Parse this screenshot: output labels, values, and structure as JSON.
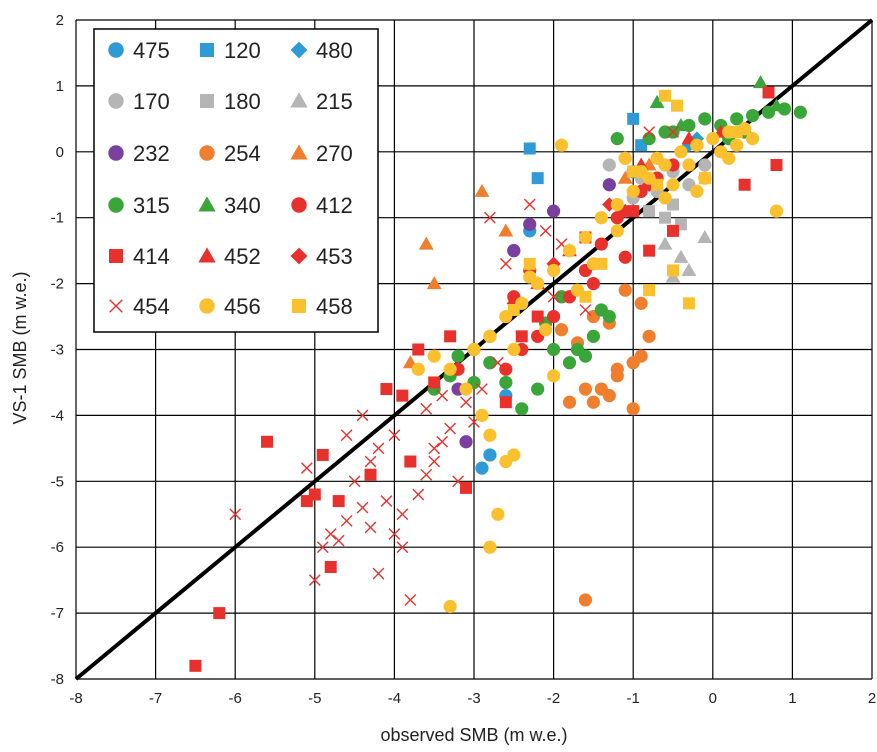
{
  "chart_data": {
    "type": "scatter",
    "xlabel": "observed SMB (m w.e.)",
    "ylabel": "VS-1 SMB  (m w.e.)",
    "xlim": [
      -8,
      2
    ],
    "ylim": [
      -8,
      2
    ],
    "x_ticks": [
      "-8",
      "-7",
      "-6",
      "-5",
      "-4",
      "-3",
      "-2",
      "-1",
      "0",
      "1",
      "2"
    ],
    "y_ticks": [
      "2",
      "1",
      "0",
      "-1",
      "-2",
      "-3",
      "-4",
      "-5",
      "-6",
      "-7",
      "-8"
    ],
    "grid": true,
    "legend_position": "top-left",
    "reference_line": {
      "x": [
        -8,
        2
      ],
      "y": [
        -8,
        2
      ],
      "color": "#000000"
    },
    "series": [
      {
        "name": "475",
        "marker": "circle",
        "color": "#2e9ad6",
        "points": [
          [
            -2.9,
            -4.8
          ],
          [
            -2.8,
            -4.6
          ],
          [
            -2.5,
            -1.5
          ],
          [
            -2.6,
            -3.7
          ],
          [
            -2.3,
            -1.2
          ]
        ]
      },
      {
        "name": "120",
        "marker": "square",
        "color": "#2e9ad6",
        "points": [
          [
            -2.3,
            0.05
          ],
          [
            -2.2,
            -0.4
          ],
          [
            -1.0,
            0.5
          ],
          [
            -0.9,
            0.1
          ]
        ]
      },
      {
        "name": "480",
        "marker": "diamond",
        "color": "#2e9ad6",
        "points": [
          [
            -0.3,
            0.1
          ],
          [
            -0.2,
            0.2
          ]
        ]
      },
      {
        "name": "170",
        "marker": "circle",
        "color": "#b5b5b5",
        "points": [
          [
            -1.3,
            -0.2
          ],
          [
            -1.1,
            -0.1
          ],
          [
            -0.9,
            -0.4
          ],
          [
            -0.7,
            -0.6
          ],
          [
            -0.5,
            -0.3
          ],
          [
            -0.3,
            -0.5
          ],
          [
            -0.1,
            -0.2
          ],
          [
            -1.0,
            -0.7
          ]
        ]
      },
      {
        "name": "180",
        "marker": "square",
        "color": "#b5b5b5",
        "points": [
          [
            -0.8,
            -0.9
          ],
          [
            -0.6,
            -1.0
          ],
          [
            -0.5,
            -0.8
          ],
          [
            -0.4,
            -1.1
          ]
        ]
      },
      {
        "name": "215",
        "marker": "triangle",
        "color": "#b5b5b5",
        "points": [
          [
            -0.6,
            -1.4
          ],
          [
            -0.4,
            -1.6
          ],
          [
            -0.3,
            -1.8
          ],
          [
            -0.1,
            -1.3
          ],
          [
            -0.5,
            -1.9
          ]
        ]
      },
      {
        "name": "232",
        "marker": "circle",
        "color": "#7b3fa0",
        "points": [
          [
            -2.5,
            -1.5
          ],
          [
            -2.3,
            -1.1
          ],
          [
            -2.0,
            -0.9
          ],
          [
            -1.3,
            -0.5
          ],
          [
            -3.2,
            -3.6
          ],
          [
            -3.1,
            -4.4
          ],
          [
            -2.8,
            -3.2
          ]
        ]
      },
      {
        "name": "254",
        "marker": "circle",
        "color": "#ef7f2e",
        "points": [
          [
            -1.8,
            -3.8
          ],
          [
            -1.6,
            -3.6
          ],
          [
            -1.5,
            -3.8
          ],
          [
            -1.4,
            -3.6
          ],
          [
            -1.3,
            -3.7
          ],
          [
            -1.2,
            -3.4
          ],
          [
            -1.0,
            -3.2
          ],
          [
            -0.9,
            -3.1
          ],
          [
            -0.8,
            -2.8
          ],
          [
            -1.0,
            -3.9
          ],
          [
            -1.2,
            -3.3
          ],
          [
            -1.5,
            -2.5
          ],
          [
            -1.1,
            -2.1
          ],
          [
            -1.3,
            -2.6
          ],
          [
            -0.9,
            -2.3
          ],
          [
            -1.6,
            -6.8
          ],
          [
            -1.7,
            -2.9
          ],
          [
            -1.9,
            -2.7
          ]
        ]
      },
      {
        "name": "270",
        "marker": "triangle",
        "color": "#ef7f2e",
        "points": [
          [
            -2.9,
            -0.6
          ],
          [
            -3.6,
            -1.4
          ],
          [
            -3.5,
            -2.0
          ],
          [
            -3.8,
            -3.2
          ],
          [
            -2.6,
            -1.2
          ],
          [
            -1.1,
            -0.4
          ],
          [
            -0.8,
            -0.2
          ]
        ]
      },
      {
        "name": "315",
        "marker": "circle",
        "color": "#3aa63a",
        "points": [
          [
            -0.3,
            0.4
          ],
          [
            -0.1,
            0.5
          ],
          [
            0.1,
            0.4
          ],
          [
            0.3,
            0.5
          ],
          [
            0.5,
            0.55
          ],
          [
            0.7,
            0.6
          ],
          [
            0.9,
            0.65
          ],
          [
            1.1,
            0.6
          ],
          [
            0.2,
            0.2
          ],
          [
            -0.5,
            0.3
          ],
          [
            -0.8,
            0.2
          ],
          [
            -0.2,
            0.1
          ],
          [
            0.4,
            0.3
          ],
          [
            -1.0,
            -0.3
          ],
          [
            -1.5,
            -2.8
          ],
          [
            -1.7,
            -3.0
          ],
          [
            -1.3,
            -2.5
          ],
          [
            -1.6,
            -3.1
          ],
          [
            -1.8,
            -3.2
          ],
          [
            -2.0,
            -3.0
          ],
          [
            -2.2,
            -3.6
          ],
          [
            -2.4,
            -3.9
          ],
          [
            -2.6,
            -3.5
          ],
          [
            -2.8,
            -3.2
          ],
          [
            -3.0,
            -3.5
          ],
          [
            -3.2,
            -3.1
          ],
          [
            -3.3,
            -3.4
          ],
          [
            -3.5,
            -3.6
          ],
          [
            -1.4,
            -2.4
          ],
          [
            -1.2,
            0.2
          ],
          [
            -0.6,
            0.3
          ],
          [
            -2.1,
            -2.6
          ],
          [
            -1.9,
            -2.2
          ]
        ]
      },
      {
        "name": "340",
        "marker": "triangle",
        "color": "#3aa63a",
        "points": [
          [
            0.6,
            1.05
          ],
          [
            -0.7,
            0.75
          ],
          [
            -0.4,
            0.4
          ],
          [
            0.8,
            0.7
          ]
        ]
      },
      {
        "name": "412",
        "marker": "circle",
        "color": "#e8312d",
        "points": [
          [
            -1.2,
            -1.0
          ],
          [
            -1.4,
            -1.4
          ],
          [
            -1.6,
            -1.8
          ],
          [
            -1.8,
            -2.2
          ],
          [
            -2.0,
            -2.5
          ],
          [
            -2.2,
            -2.8
          ],
          [
            -2.4,
            -3.0
          ],
          [
            -2.6,
            -3.3
          ],
          [
            -2.8,
            -2.8
          ],
          [
            -3.0,
            -3.0
          ],
          [
            -3.2,
            -3.3
          ],
          [
            -0.9,
            -0.6
          ],
          [
            -0.7,
            -0.4
          ],
          [
            -0.5,
            -0.2
          ],
          [
            -1.5,
            -2.0
          ],
          [
            -2.3,
            -1.8
          ],
          [
            -2.5,
            -2.2
          ],
          [
            -1.1,
            -1.6
          ]
        ]
      },
      {
        "name": "414",
        "marker": "square",
        "color": "#e8312d",
        "points": [
          [
            -6.5,
            -7.8
          ],
          [
            -6.2,
            -7.0
          ],
          [
            -5.6,
            -4.4
          ],
          [
            -5.1,
            -5.3
          ],
          [
            -5.0,
            -5.2
          ],
          [
            -4.9,
            -4.6
          ],
          [
            -4.8,
            -6.3
          ],
          [
            -4.7,
            -5.3
          ],
          [
            -4.3,
            -4.9
          ],
          [
            -4.1,
            -3.6
          ],
          [
            -3.9,
            -3.7
          ],
          [
            -3.8,
            -4.7
          ],
          [
            -3.7,
            -3.0
          ],
          [
            -3.5,
            -3.5
          ],
          [
            -3.3,
            -2.8
          ],
          [
            -3.1,
            -5.1
          ],
          [
            -2.6,
            -3.8
          ],
          [
            -2.4,
            -2.8
          ],
          [
            -2.2,
            -2.5
          ],
          [
            -1.0,
            -0.9
          ],
          [
            -0.5,
            -1.2
          ],
          [
            0.4,
            -0.5
          ],
          [
            0.8,
            -0.2
          ],
          [
            0.7,
            0.9
          ],
          [
            -1.6,
            -1.3
          ],
          [
            -0.8,
            -1.5
          ]
        ]
      },
      {
        "name": "452",
        "marker": "triangle",
        "color": "#e8312d",
        "points": [
          [
            -0.3,
            0.2
          ],
          [
            0.1,
            0.3
          ],
          [
            -0.9,
            -0.2
          ],
          [
            -2.2,
            -2.0
          ],
          [
            -1.8,
            -1.5
          ]
        ]
      },
      {
        "name": "453",
        "marker": "diamond",
        "color": "#e8312d",
        "points": [
          [
            -1.3,
            -0.8
          ],
          [
            -1.1,
            -0.9
          ],
          [
            -0.8,
            -0.5
          ],
          [
            -2.0,
            -1.7
          ],
          [
            -2.5,
            -2.3
          ]
        ]
      },
      {
        "name": "454",
        "marker": "x",
        "color": "#e8312d",
        "points": [
          [
            -6.0,
            -5.5
          ],
          [
            -5.1,
            -4.8
          ],
          [
            -5.0,
            -6.5
          ],
          [
            -4.9,
            -6.0
          ],
          [
            -4.8,
            -5.8
          ],
          [
            -4.7,
            -5.9
          ],
          [
            -4.6,
            -5.6
          ],
          [
            -4.5,
            -5.0
          ],
          [
            -4.4,
            -5.4
          ],
          [
            -4.3,
            -5.7
          ],
          [
            -4.2,
            -6.4
          ],
          [
            -4.1,
            -5.3
          ],
          [
            -4.0,
            -5.8
          ],
          [
            -3.9,
            -5.5
          ],
          [
            -3.8,
            -6.8
          ],
          [
            -3.7,
            -5.2
          ],
          [
            -3.6,
            -4.9
          ],
          [
            -3.5,
            -4.7
          ],
          [
            -3.4,
            -4.4
          ],
          [
            -3.3,
            -4.2
          ],
          [
            -3.2,
            -5.0
          ],
          [
            -3.1,
            -3.8
          ],
          [
            -3.0,
            -4.1
          ],
          [
            -4.4,
            -4.0
          ],
          [
            -4.2,
            -4.5
          ],
          [
            -4.0,
            -4.3
          ],
          [
            -3.9,
            -6.0
          ],
          [
            -3.6,
            -3.9
          ],
          [
            -3.4,
            -3.7
          ],
          [
            -2.9,
            -3.6
          ],
          [
            -2.7,
            -3.2
          ],
          [
            -2.6,
            -1.7
          ],
          [
            -2.8,
            -1.0
          ],
          [
            -2.3,
            -0.8
          ],
          [
            -2.1,
            -1.2
          ],
          [
            -1.9,
            -1.4
          ],
          [
            -0.8,
            0.3
          ],
          [
            -0.5,
            0.3
          ],
          [
            -4.3,
            -4.7
          ],
          [
            -4.6,
            -4.3
          ],
          [
            -3.5,
            -4.5
          ],
          [
            -2.0,
            -2.2
          ],
          [
            -1.6,
            -2.4
          ]
        ]
      },
      {
        "name": "456",
        "marker": "circle",
        "color": "#fbc02d",
        "points": [
          [
            -3.3,
            -6.9
          ],
          [
            -2.8,
            -6.0
          ],
          [
            -2.7,
            -5.5
          ],
          [
            -2.6,
            -4.7
          ],
          [
            -2.5,
            -4.6
          ],
          [
            -2.8,
            -4.3
          ],
          [
            -2.9,
            -4.0
          ],
          [
            -3.1,
            -3.6
          ],
          [
            -3.3,
            -3.3
          ],
          [
            -3.5,
            -3.1
          ],
          [
            -3.7,
            -3.3
          ],
          [
            -3.0,
            -3.0
          ],
          [
            -2.8,
            -2.8
          ],
          [
            -2.6,
            -2.5
          ],
          [
            -2.4,
            -2.3
          ],
          [
            -2.2,
            -2.0
          ],
          [
            -2.0,
            -1.8
          ],
          [
            -1.8,
            -1.5
          ],
          [
            -1.6,
            -1.3
          ],
          [
            -1.4,
            -1.0
          ],
          [
            -1.2,
            -0.8
          ],
          [
            -1.0,
            -0.6
          ],
          [
            -0.8,
            -0.4
          ],
          [
            -0.6,
            -0.2
          ],
          [
            -0.4,
            0.0
          ],
          [
            -0.2,
            0.1
          ],
          [
            0.0,
            0.2
          ],
          [
            0.2,
            0.3
          ],
          [
            0.4,
            0.35
          ],
          [
            -1.1,
            -0.1
          ],
          [
            -0.9,
            -0.3
          ],
          [
            -0.7,
            -0.1
          ],
          [
            -0.5,
            -0.5
          ],
          [
            -0.3,
            -0.2
          ],
          [
            -0.1,
            -0.4
          ],
          [
            0.1,
            0.0
          ],
          [
            0.3,
            0.1
          ],
          [
            0.8,
            -0.9
          ],
          [
            -1.9,
            0.1
          ],
          [
            -2.1,
            -2.7
          ],
          [
            -2.3,
            -1.9
          ],
          [
            -1.5,
            -1.7
          ],
          [
            -1.7,
            -2.1
          ],
          [
            -2.5,
            -3.0
          ],
          [
            -2.0,
            -3.4
          ],
          [
            -1.2,
            -1.2
          ],
          [
            -0.6,
            -0.7
          ],
          [
            -0.2,
            -0.6
          ],
          [
            0.2,
            -0.1
          ],
          [
            0.5,
            0.2
          ]
        ]
      },
      {
        "name": "458",
        "marker": "square",
        "color": "#fbc02d",
        "points": [
          [
            -0.6,
            0.85
          ],
          [
            -0.45,
            0.7
          ],
          [
            -1.6,
            -2.2
          ],
          [
            -1.4,
            -1.7
          ],
          [
            -2.3,
            -1.7
          ],
          [
            -2.5,
            -2.4
          ],
          [
            -0.8,
            -2.1
          ],
          [
            -0.5,
            -1.8
          ],
          [
            -0.3,
            -2.3
          ],
          [
            -0.1,
            -0.4
          ],
          [
            0.3,
            0.3
          ],
          [
            -1.0,
            -0.3
          ],
          [
            -0.7,
            -0.5
          ]
        ]
      }
    ]
  }
}
